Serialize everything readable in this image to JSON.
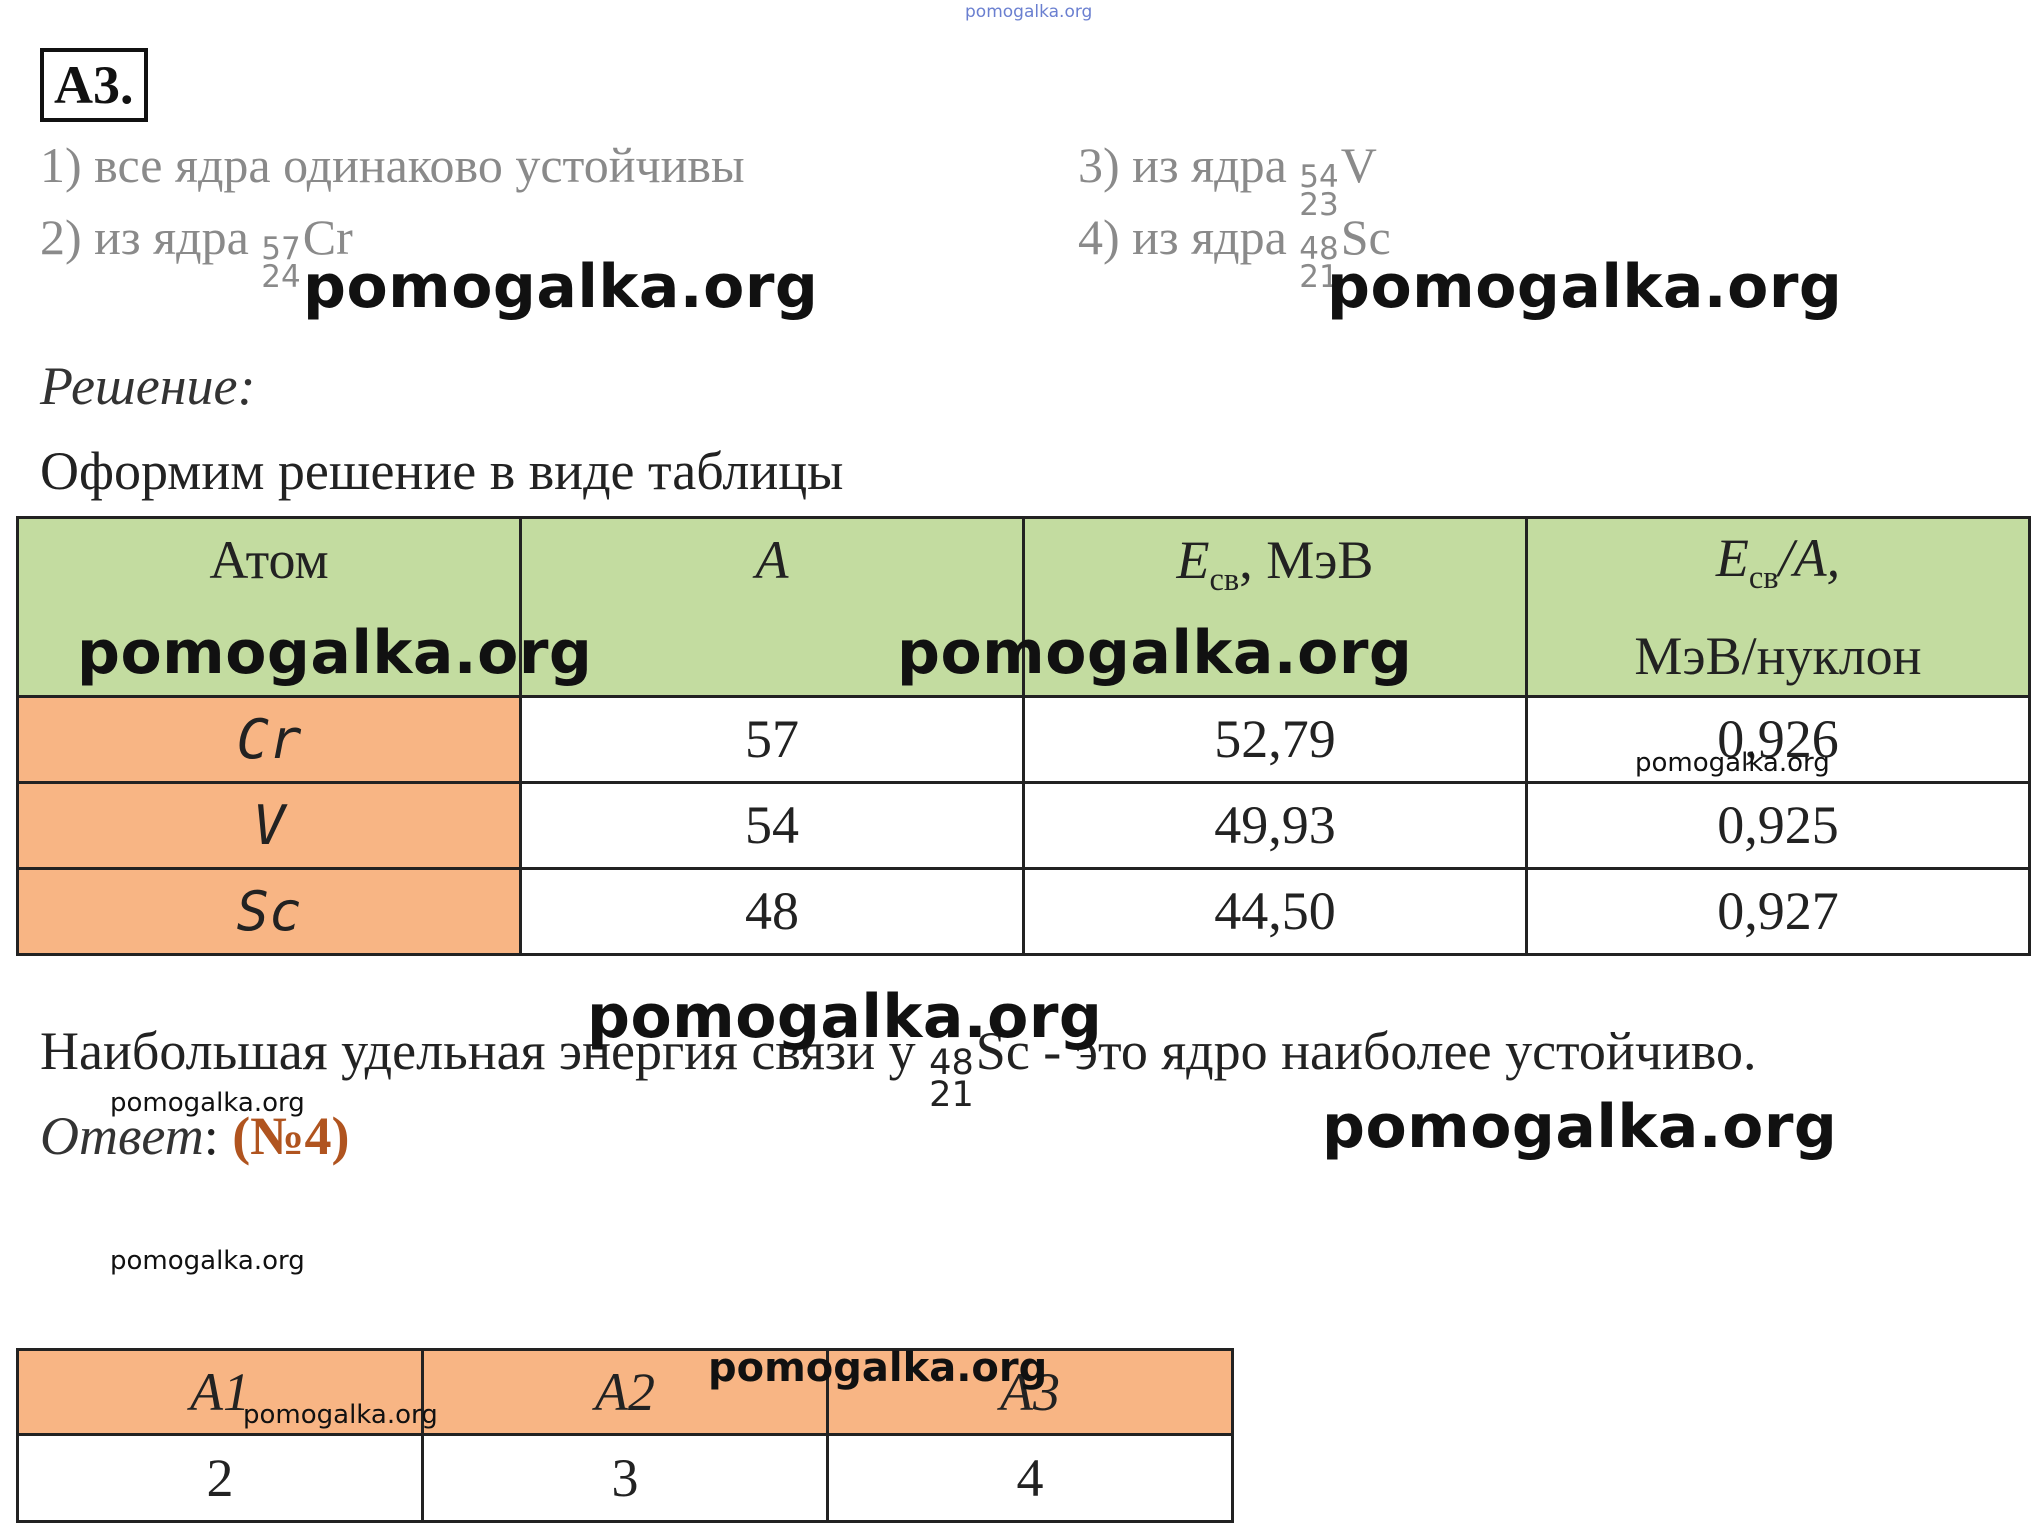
{
  "top_watermark": "pomogalka.org",
  "task_label": "A3.",
  "options": {
    "opt1": "1) все ядра одинаково устойчивы",
    "opt2": {
      "prefix": "2) из ядра ",
      "mass": "57",
      "charge": "24",
      "symbol": "Cr"
    },
    "opt3": {
      "prefix": "3) из ядра ",
      "mass": "54",
      "charge": "23",
      "symbol": "V"
    },
    "opt4": {
      "prefix": "4) из ядра ",
      "mass": "48",
      "charge": "21",
      "symbol": "Sc"
    }
  },
  "solution_label": "Решение:",
  "intro": "Оформим решение в виде таблицы",
  "table": {
    "headers": {
      "atom": "Атом",
      "a": "A",
      "e_main": "E",
      "e_sub": "св",
      "e_unit": ", МэВ",
      "ea_main": "E",
      "ea_sub": "св",
      "ea_rest": "/A,",
      "ea_unit": "МэВ/нуклон"
    },
    "rows": [
      {
        "element": "Cr",
        "a": "57",
        "e": "52,79",
        "ea": "0,926"
      },
      {
        "element": "V",
        "a": "54",
        "e": "49,93",
        "ea": "0,925"
      },
      {
        "element": "Sc",
        "a": "48",
        "e": "44,50",
        "ea": "0,927"
      }
    ]
  },
  "conclusion": {
    "before": "Наибольшая удельная энергия связи у ",
    "mass": "48",
    "charge": "21",
    "symbol": "Sc",
    "after": " - это ядро наиболее устойчиво."
  },
  "answer": {
    "label": "Ответ",
    "colon": ": ",
    "value": "(№4)"
  },
  "summary": {
    "headers": [
      "A1",
      "A2",
      "A3"
    ],
    "values": [
      "2",
      "3",
      "4"
    ]
  },
  "watermarks": {
    "wm": "pomogalka.org"
  }
}
